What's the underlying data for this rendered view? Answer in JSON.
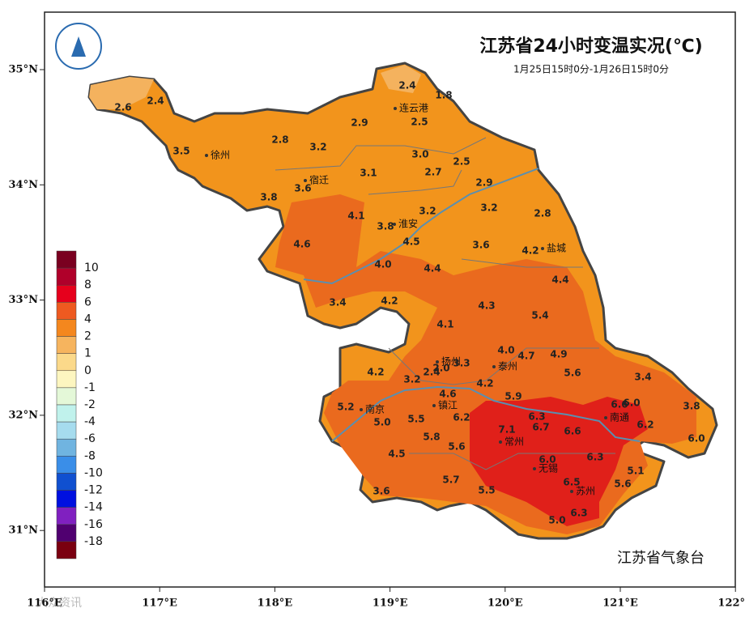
{
  "header": {
    "title": "江苏省24小时变温实况(℃)",
    "subtitle": "1月25日15时0分-1月26日15时0分"
  },
  "axes": {
    "lon": [
      "116°E",
      "117°E",
      "118°E",
      "119°E",
      "120°E",
      "121°E",
      "122°E"
    ],
    "lat": [
      "35°N",
      "34°N",
      "33°N",
      "32°N",
      "31°N"
    ]
  },
  "legend": [
    10,
    8,
    6,
    4,
    2,
    1,
    0,
    -1,
    -2,
    -4,
    -6,
    -8,
    -10,
    -12,
    -14,
    -16,
    -18
  ],
  "cities": [
    "徐州",
    "连云港",
    "宿迁",
    "淮安",
    "盐城",
    "扬州",
    "泰州",
    "南京",
    "镇江",
    "南通",
    "常州",
    "无锡",
    "苏州"
  ],
  "stations": [
    "2.6",
    "2.4",
    "3.5",
    "2.8",
    "3.2",
    "2.9",
    "2.4",
    "1.8",
    "2.5",
    "3.0",
    "2.7",
    "2.5",
    "3.1",
    "3.6",
    "3.8",
    "2.9",
    "4.1",
    "3.8",
    "3.2",
    "3.2",
    "2.8",
    "4.6",
    "4.5",
    "3.6",
    "4.2",
    "4.0",
    "4.4",
    "4.4",
    "3.4",
    "4.2",
    "4.3",
    "5.4",
    "4.1",
    "4.0",
    "4.7",
    "4.9",
    "2.0",
    "3.3",
    "4.2",
    "2.4",
    "3.2",
    "5.6",
    "3.4",
    "4.6",
    "4.2",
    "5.9",
    "6.6",
    "6.0",
    "3.8",
    "5.2",
    "5.0",
    "5.5",
    "6.2",
    "6.3",
    "6.2",
    "7.1",
    "6.7",
    "6.6",
    "5.8",
    "6.0",
    "5.6",
    "4.5",
    "6.0",
    "6.3",
    "5.1",
    "5.7",
    "6.5",
    "5.6",
    "3.6",
    "5.5",
    "6.3",
    "5.0"
  ],
  "source": "江苏省气象台",
  "watermark": "大众资讯"
}
